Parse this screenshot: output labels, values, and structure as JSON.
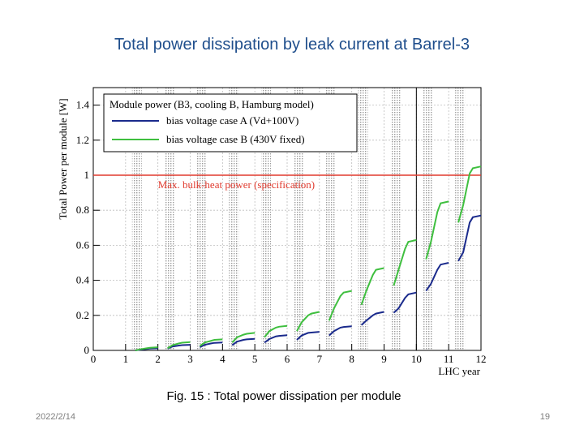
{
  "slide": {
    "title": "Total power dissipation by leak current at Barrel-3",
    "caption": "Fig. 15 : Total power dissipation per module",
    "date": "2022/2/14",
    "page": "19"
  },
  "chart_data": {
    "type": "line",
    "ylabel": "Total Power per module [W]",
    "xlabel": "LHC year",
    "xlim": [
      0,
      12
    ],
    "ylim": [
      0,
      1.5
    ],
    "x_ticks": [
      "0",
      "1",
      "2",
      "3",
      "4",
      "5",
      "6",
      "7",
      "8",
      "9",
      "10",
      "11",
      "12"
    ],
    "y_ticks": [
      "0",
      "0.2",
      "0.4",
      "0.6",
      "0.8",
      "1",
      "1.2",
      "1.4"
    ],
    "grid": true,
    "legend": {
      "title": "Module power (B3, cooling B, Hamburg model)",
      "placement": "top-left"
    },
    "reference_line": {
      "y": 1.0,
      "label": "Max. bulk-heat power (specification)",
      "color": "#e03a2e"
    },
    "vertical_marker_x": 10,
    "series": [
      {
        "name": "bias voltage case A (Vd+100V)",
        "color": "#1a2a8c",
        "segments": [
          [
            [
              1.3,
              0.0
            ],
            [
              1.45,
              0.004
            ],
            [
              1.65,
              0.008
            ],
            [
              1.75,
              0.01
            ],
            [
              2.0,
              0.012
            ]
          ],
          [
            [
              2.3,
              0.01
            ],
            [
              2.45,
              0.022
            ],
            [
              2.65,
              0.028
            ],
            [
              2.75,
              0.03
            ],
            [
              3.0,
              0.032
            ]
          ],
          [
            [
              3.3,
              0.018
            ],
            [
              3.45,
              0.032
            ],
            [
              3.65,
              0.04
            ],
            [
              3.75,
              0.043
            ],
            [
              4.0,
              0.045
            ]
          ],
          [
            [
              4.3,
              0.03
            ],
            [
              4.45,
              0.05
            ],
            [
              4.65,
              0.06
            ],
            [
              4.75,
              0.063
            ],
            [
              5.0,
              0.066
            ]
          ],
          [
            [
              5.3,
              0.045
            ],
            [
              5.45,
              0.065
            ],
            [
              5.65,
              0.08
            ],
            [
              5.75,
              0.083
            ],
            [
              6.0,
              0.087
            ]
          ],
          [
            [
              6.3,
              0.06
            ],
            [
              6.45,
              0.085
            ],
            [
              6.65,
              0.1
            ],
            [
              6.75,
              0.102
            ],
            [
              7.0,
              0.106
            ]
          ],
          [
            [
              7.3,
              0.085
            ],
            [
              7.45,
              0.11
            ],
            [
              7.65,
              0.13
            ],
            [
              7.75,
              0.134
            ],
            [
              8.0,
              0.138
            ]
          ],
          [
            [
              8.3,
              0.145
            ],
            [
              8.45,
              0.17
            ],
            [
              8.65,
              0.2
            ],
            [
              8.75,
              0.21
            ],
            [
              9.0,
              0.22
            ]
          ],
          [
            [
              9.3,
              0.215
            ],
            [
              9.45,
              0.24
            ],
            [
              9.65,
              0.3
            ],
            [
              9.75,
              0.32
            ],
            [
              10.0,
              0.33
            ]
          ],
          [
            [
              10.3,
              0.34
            ],
            [
              10.45,
              0.38
            ],
            [
              10.65,
              0.46
            ],
            [
              10.75,
              0.49
            ],
            [
              11.0,
              0.5
            ]
          ],
          [
            [
              11.3,
              0.51
            ],
            [
              11.45,
              0.56
            ],
            [
              11.65,
              0.73
            ],
            [
              11.75,
              0.76
            ],
            [
              12.0,
              0.77
            ]
          ]
        ]
      },
      {
        "name": "bias voltage case B (430V fixed)",
        "color": "#3fbf3f",
        "segments": [
          [
            [
              1.3,
              0.0
            ],
            [
              1.45,
              0.006
            ],
            [
              1.65,
              0.012
            ],
            [
              1.75,
              0.015
            ],
            [
              2.0,
              0.018
            ]
          ],
          [
            [
              2.3,
              0.012
            ],
            [
              2.45,
              0.03
            ],
            [
              2.65,
              0.04
            ],
            [
              2.75,
              0.044
            ],
            [
              3.0,
              0.047
            ]
          ],
          [
            [
              3.3,
              0.025
            ],
            [
              3.45,
              0.045
            ],
            [
              3.65,
              0.055
            ],
            [
              3.75,
              0.06
            ],
            [
              4.0,
              0.063
            ]
          ],
          [
            [
              4.3,
              0.045
            ],
            [
              4.45,
              0.075
            ],
            [
              4.65,
              0.09
            ],
            [
              4.75,
              0.095
            ],
            [
              5.0,
              0.1
            ]
          ],
          [
            [
              5.3,
              0.075
            ],
            [
              5.45,
              0.11
            ],
            [
              5.65,
              0.13
            ],
            [
              5.75,
              0.135
            ],
            [
              6.0,
              0.14
            ]
          ],
          [
            [
              6.3,
              0.11
            ],
            [
              6.45,
              0.16
            ],
            [
              6.65,
              0.2
            ],
            [
              6.75,
              0.21
            ],
            [
              7.0,
              0.22
            ]
          ],
          [
            [
              7.3,
              0.17
            ],
            [
              7.45,
              0.24
            ],
            [
              7.65,
              0.31
            ],
            [
              7.75,
              0.33
            ],
            [
              8.0,
              0.34
            ]
          ],
          [
            [
              8.3,
              0.26
            ],
            [
              8.45,
              0.34
            ],
            [
              8.65,
              0.43
            ],
            [
              8.75,
              0.46
            ],
            [
              9.0,
              0.47
            ]
          ],
          [
            [
              9.3,
              0.37
            ],
            [
              9.45,
              0.46
            ],
            [
              9.65,
              0.58
            ],
            [
              9.75,
              0.62
            ],
            [
              10.0,
              0.63
            ]
          ],
          [
            [
              10.3,
              0.52
            ],
            [
              10.45,
              0.62
            ],
            [
              10.65,
              0.79
            ],
            [
              10.75,
              0.84
            ],
            [
              11.0,
              0.85
            ]
          ],
          [
            [
              11.3,
              0.73
            ],
            [
              11.45,
              0.83
            ],
            [
              11.65,
              1.01
            ],
            [
              11.75,
              1.04
            ],
            [
              12.0,
              1.05
            ]
          ]
        ]
      }
    ]
  }
}
